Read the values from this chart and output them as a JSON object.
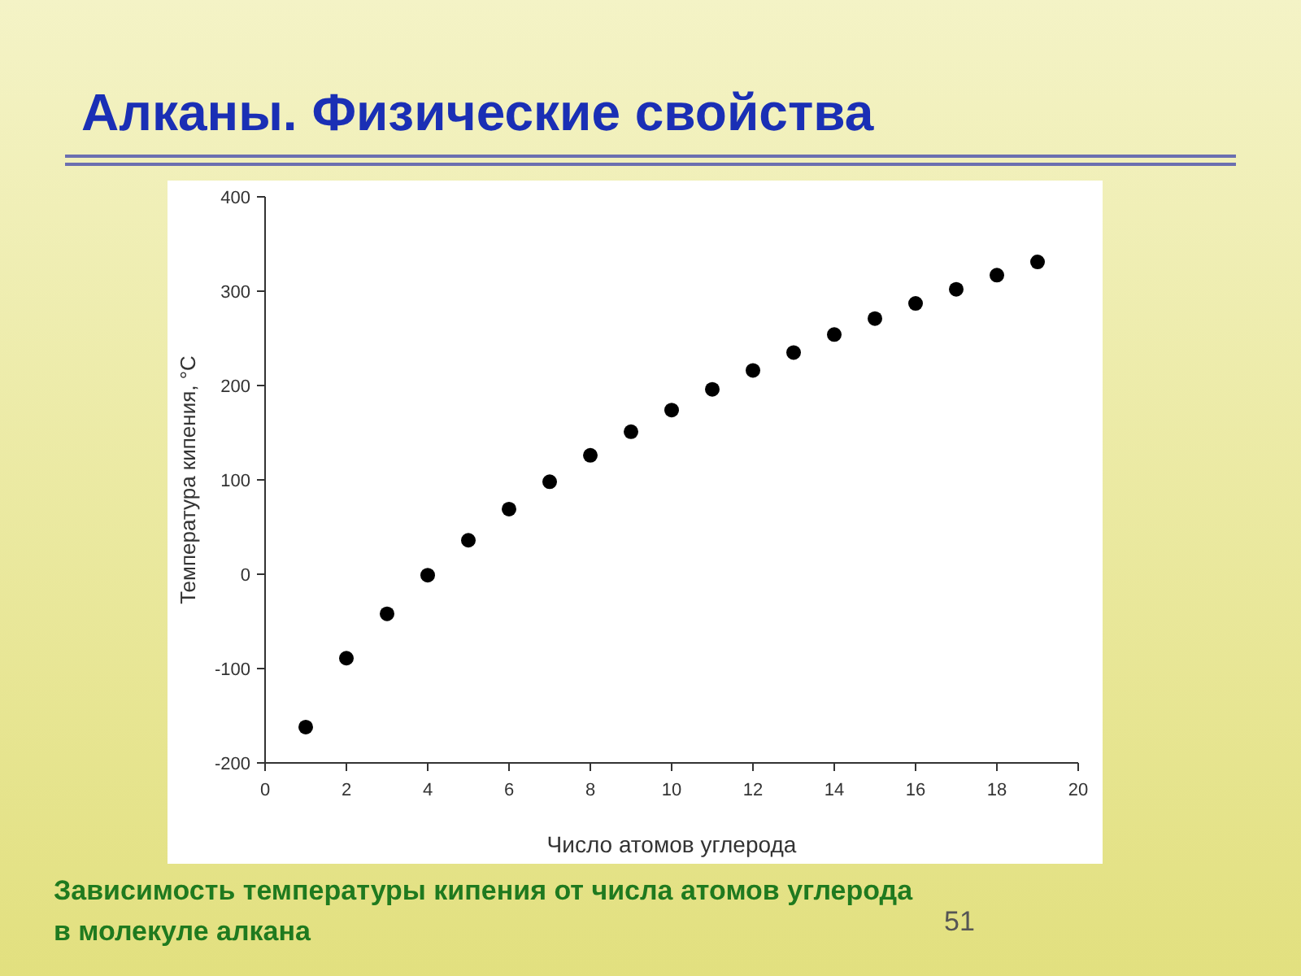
{
  "chart_data": {
    "type": "scatter",
    "title": "Алканы. Физические свойства",
    "xlabel": "Число атомов углерода",
    "ylabel": "Температура кипения, °С",
    "x": [
      1,
      2,
      3,
      4,
      5,
      6,
      7,
      8,
      9,
      10,
      11,
      12,
      13,
      14,
      15,
      16,
      17,
      18,
      19
    ],
    "series": [
      {
        "color": "#000000",
        "values": [
          -162,
          -89,
          -42,
          -1,
          36,
          69,
          98,
          126,
          151,
          174,
          196,
          216,
          235,
          254,
          271,
          287,
          302,
          317,
          331
        ]
      }
    ],
    "xlim": [
      0,
      20
    ],
    "xticks": [
      0,
      2,
      4,
      6,
      8,
      10,
      12,
      14,
      16,
      18,
      20
    ],
    "ylim": [
      -200,
      400
    ],
    "yticks": [
      -200,
      -100,
      0,
      100,
      200,
      300,
      400
    ],
    "marker": "circle",
    "grid": false,
    "annotations": [
      "Зависимость температуры кипения от числа атомов углерода в молекуле алкана",
      "51"
    ]
  }
}
